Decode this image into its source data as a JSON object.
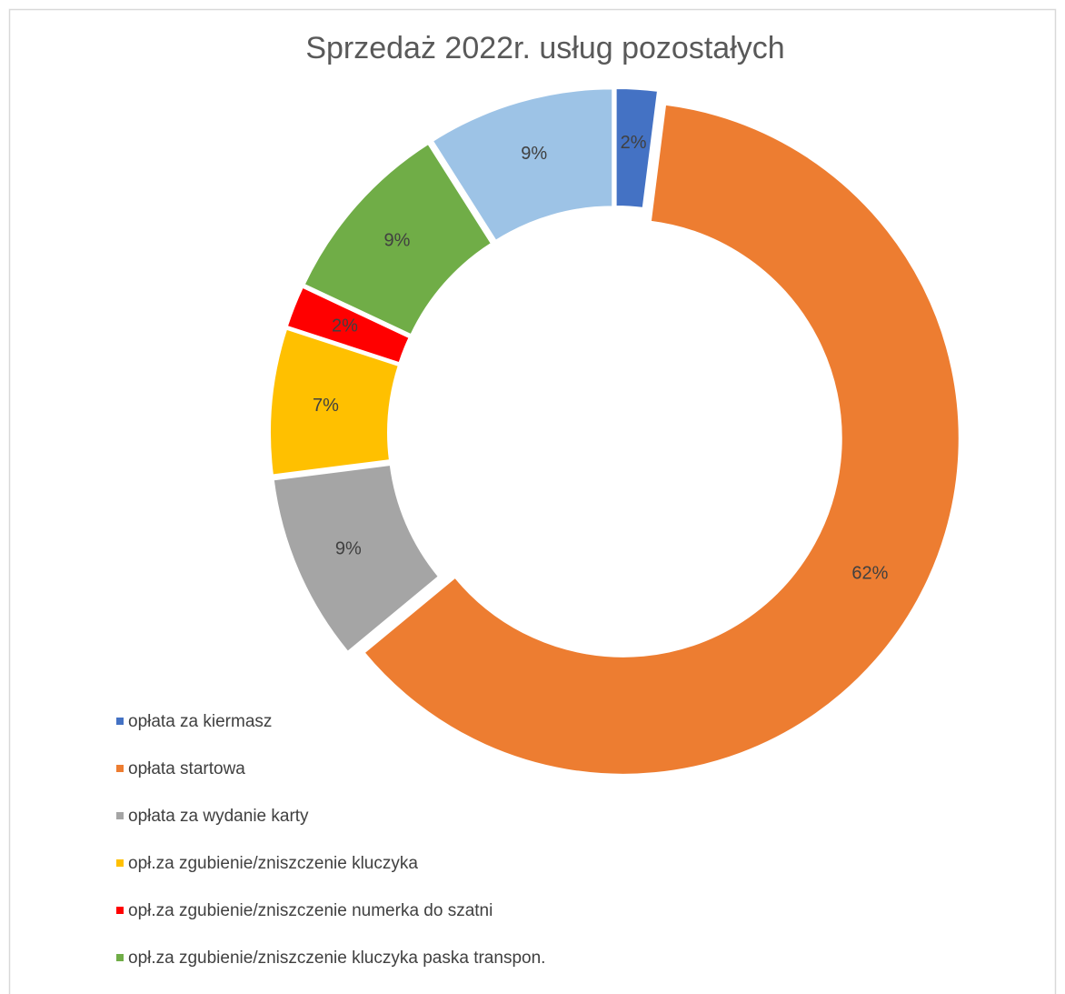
{
  "chart_data": {
    "type": "pie",
    "donut": true,
    "title": "Sprzedaż 2022r. usług pozostałych",
    "categories": [
      "opłata za kiermasz",
      "opłata startowa",
      "opłata za wydanie karty",
      "opł.za zgubienie/zniszczenie kluczyka",
      "opł.za zgubienie/zniszczenie numerka do szatni",
      "opł.za zgubienie/zniszczenie kluczyka paska transpon.",
      null
    ],
    "values": [
      2,
      62,
      9,
      7,
      2,
      9,
      9
    ],
    "value_labels": [
      "2%",
      "62%",
      "9%",
      "7%",
      "2%",
      "9%",
      "9%"
    ],
    "colors": [
      "#4472c4",
      "#ed7d31",
      "#a5a5a5",
      "#ffc000",
      "#ff0000",
      "#70ad47",
      "#9dc3e6"
    ],
    "legend": "bottom-left"
  }
}
